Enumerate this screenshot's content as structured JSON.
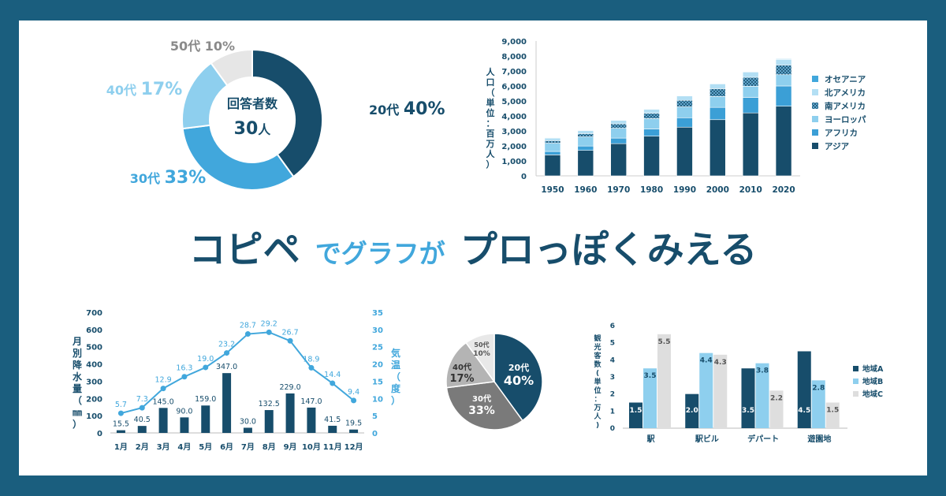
{
  "headline": {
    "part1": "コピペ",
    "part2": "でグラフが",
    "part3": "プロっぽくみえる"
  },
  "colors": {
    "frame": "#1a5e7e",
    "dark": "#174d6b",
    "mid": "#41a7dc",
    "light": "#8ecfee",
    "grey": "#e6e6e6"
  },
  "chart_data": [
    {
      "type": "pie",
      "variant": "donut",
      "center_label": "回答者数",
      "center_value": "30",
      "center_unit": "人",
      "slices": [
        {
          "label": "20代",
          "pct": "40%",
          "value": 40,
          "color": "#174d6b"
        },
        {
          "label": "30代",
          "pct": "33%",
          "value": 33,
          "color": "#41a7dc"
        },
        {
          "label": "40代",
          "pct": "17%",
          "value": 17,
          "color": "#8ecfee"
        },
        {
          "label": "50代",
          "pct": "10%",
          "value": 10,
          "color": "#e6e6e6"
        }
      ]
    },
    {
      "type": "bar",
      "stacked": true,
      "ylabel": "人口（単位：百万人）",
      "ylim": [
        0,
        9000
      ],
      "yticks": [
        "0",
        "1,000",
        "2,000",
        "3,000",
        "4,000",
        "5,000",
        "6,000",
        "7,000",
        "8,000",
        "9,000"
      ],
      "categories": [
        "1950",
        "1960",
        "1970",
        "1980",
        "1990",
        "2000",
        "2010",
        "2020"
      ],
      "legend_position": "right",
      "series": [
        {
          "name": "アジア",
          "color": "#174d6b",
          "values": [
            1400,
            1700,
            2150,
            2650,
            3250,
            3750,
            4200,
            4650
          ]
        },
        {
          "name": "アフリカ",
          "color": "#3b9fd6",
          "values": [
            230,
            290,
            370,
            480,
            630,
            820,
            1040,
            1350
          ]
        },
        {
          "name": "ヨーロッパ",
          "color": "#8ecfee",
          "values": [
            550,
            610,
            660,
            690,
            720,
            730,
            740,
            750
          ]
        },
        {
          "name": "南アメリカ",
          "color": "#174d6b",
          "pattern": "hatch",
          "values": [
            170,
            220,
            290,
            360,
            440,
            520,
            600,
            650
          ]
        },
        {
          "name": "北アメリカ",
          "color": "#b3dff4",
          "values": [
            170,
            200,
            230,
            260,
            290,
            320,
            345,
            370
          ]
        },
        {
          "name": "オセアニア",
          "color": "#41a7dc",
          "values": [
            13,
            16,
            20,
            23,
            27,
            31,
            37,
            43
          ]
        }
      ]
    },
    {
      "type": "bar",
      "combo": "bar+line",
      "categories": [
        "1月",
        "2月",
        "3月",
        "4月",
        "5月",
        "6月",
        "7月",
        "8月",
        "9月",
        "10月",
        "11月",
        "12月"
      ],
      "ylabel": "月別降水量（㎜）",
      "y2label": "気温（度）",
      "ylim": [
        0,
        700
      ],
      "y2lim": [
        0,
        35
      ],
      "yticks": [
        "0",
        "100",
        "200",
        "300",
        "400",
        "500",
        "600",
        "700"
      ],
      "y2ticks": [
        "0",
        "5",
        "10",
        "15",
        "20",
        "25",
        "30",
        "35"
      ],
      "series": [
        {
          "type": "bar",
          "color": "#174d6b",
          "values": [
            15.5,
            40.5,
            145.0,
            90.0,
            159.0,
            347.0,
            30.0,
            132.5,
            229.0,
            147.0,
            41.5,
            19.5
          ],
          "labels": [
            "15.5",
            "40.5",
            "145.0",
            "90.0",
            "159.0",
            "347.0",
            "30.0",
            "132.5",
            "229.0",
            "147.0",
            "41.5",
            "19.5"
          ]
        },
        {
          "type": "line",
          "axis": "right",
          "color": "#41a7dc",
          "values": [
            5.7,
            7.3,
            12.9,
            16.3,
            19.0,
            23.2,
            28.7,
            29.2,
            26.7,
            18.9,
            14.4,
            9.4
          ],
          "labels": [
            "5.7",
            "7.3",
            "12.9",
            "16.3",
            "19.0",
            "23.2",
            "28.7",
            "29.2",
            "26.7",
            "18.9",
            "14.4",
            "9.4"
          ]
        }
      ]
    },
    {
      "type": "pie",
      "slices": [
        {
          "label": "20代",
          "pct": "40%",
          "value": 40,
          "color": "#174d6b"
        },
        {
          "label": "30代",
          "pct": "33%",
          "value": 33,
          "color": "#7a7a7a"
        },
        {
          "label": "40代",
          "pct": "17%",
          "value": 17,
          "color": "#b4b4b4"
        },
        {
          "label": "50代",
          "pct": "10%",
          "value": 10,
          "color": "#e8e8e8"
        }
      ]
    },
    {
      "type": "bar",
      "ylabel": "観光客数(単位：万人)",
      "ylim": [
        0,
        6
      ],
      "yticks": [
        "0",
        "1",
        "2",
        "3",
        "4",
        "5",
        "6"
      ],
      "categories": [
        "駅",
        "駅ビル",
        "デパート",
        "遊園地"
      ],
      "legend_position": "right",
      "series": [
        {
          "name": "地域A",
          "color": "#174d6b",
          "values": [
            1.5,
            2.0,
            3.5,
            4.5
          ],
          "labels": [
            "1.5",
            "2.0",
            "3.5",
            "4.5"
          ]
        },
        {
          "name": "地域B",
          "color": "#8ecfee",
          "values": [
            3.5,
            4.4,
            3.8,
            2.8
          ],
          "labels": [
            "3.5",
            "4.4",
            "3.8",
            "2.8"
          ]
        },
        {
          "name": "地域C",
          "color": "#dedede",
          "values": [
            5.5,
            4.3,
            2.2,
            1.5
          ],
          "labels": [
            "5.5",
            "4.3",
            "2.2",
            "1.5"
          ]
        }
      ]
    }
  ]
}
